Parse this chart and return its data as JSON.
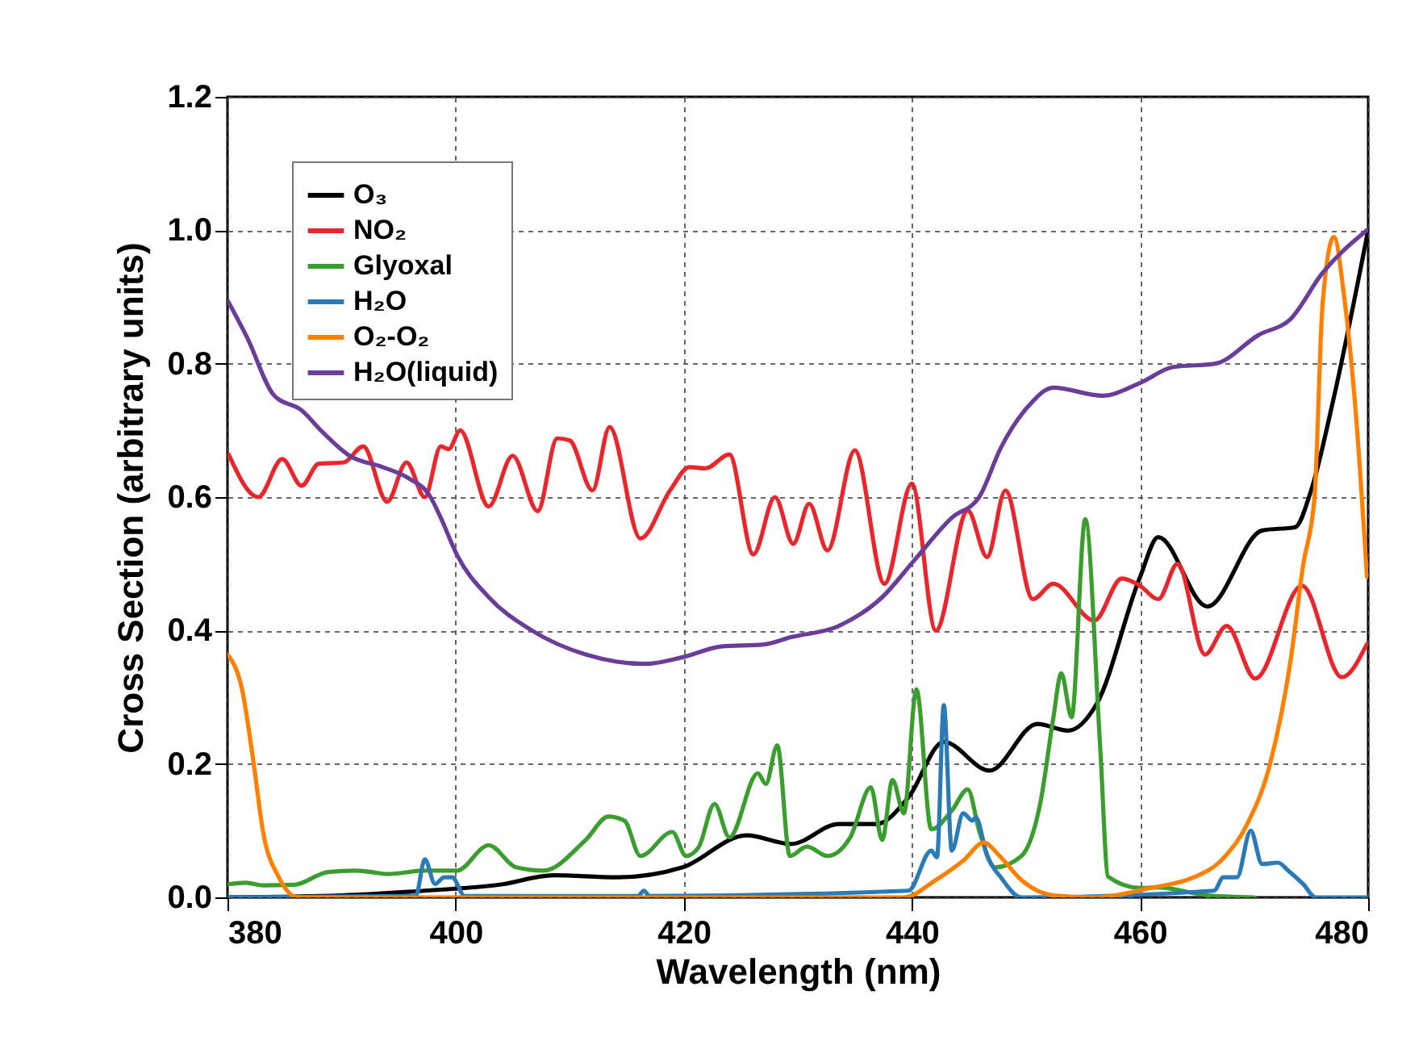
{
  "chart_data": {
    "type": "line",
    "xlabel": "Wavelength (nm)",
    "ylabel": "Cross Section (arbitrary units)",
    "xlim": [
      380,
      480
    ],
    "xticks": [
      380,
      400,
      420,
      440,
      460,
      480
    ],
    "ylim": [
      0,
      1.2
    ],
    "yticks": [
      {
        "value": 0,
        "label": "0.0"
      },
      {
        "value": 0.2,
        "label": "0.2"
      },
      {
        "value": 0.4,
        "label": "0.4"
      },
      {
        "value": 0.6,
        "label": "0.6"
      },
      {
        "value": 0.8,
        "label": "0.8"
      },
      {
        "value": 1.0,
        "label": "1.0"
      },
      {
        "value": 1.2,
        "label": "1.2"
      }
    ],
    "grid": true,
    "legend": "top left",
    "series": [
      {
        "name": "O₃",
        "color": "#000000",
        "x": [
          380,
          390,
          397.3,
          403.9,
          408.6,
          414.2,
          419.9,
          425.5,
          429.4,
          433.6,
          436.9,
          439.7,
          442.8,
          446.8,
          451,
          453.7,
          456.2,
          460,
          461.6,
          465.9,
          470.7,
          473.6,
          475,
          477,
          480
        ],
        "values": [
          0,
          0.003,
          0.01,
          0.019,
          0.033,
          0.03,
          0.045,
          0.093,
          0.08,
          0.11,
          0.11,
          0.15,
          0.233,
          0.19,
          0.26,
          0.25,
          0.29,
          0.48,
          0.54,
          0.436,
          0.55,
          0.555,
          0.61,
          0.75,
          1.0
        ]
      },
      {
        "name": "NO₂",
        "color": "#e8262b",
        "x": [
          380.1,
          382.7,
          384.8,
          386.5,
          388,
          390.2,
          391.9,
          394,
          395.7,
          397.3,
          398.7,
          399.4,
          400.4,
          402.9,
          405,
          407.2,
          408.9,
          410,
          412,
          413.5,
          416.2,
          418.8,
          420.5,
          421.9,
          424,
          426.1,
          428,
          429.6,
          431,
          432.6,
          435,
          437.6,
          440,
          442.1,
          444.9,
          446.6,
          448.2,
          450.6,
          452.4,
          456,
          458.4,
          460,
          461.6,
          463.3,
          465.7,
          467.6,
          470.1,
          474.2,
          477.7,
          479.9
        ],
        "values": [
          0.664,
          0.6,
          0.657,
          0.617,
          0.65,
          0.652,
          0.676,
          0.593,
          0.652,
          0.6,
          0.676,
          0.672,
          0.7,
          0.586,
          0.662,
          0.579,
          0.688,
          0.685,
          0.61,
          0.705,
          0.538,
          0.61,
          0.645,
          0.643,
          0.664,
          0.514,
          0.6,
          0.53,
          0.59,
          0.52,
          0.67,
          0.47,
          0.62,
          0.4,
          0.58,
          0.51,
          0.61,
          0.447,
          0.47,
          0.415,
          0.478,
          0.467,
          0.447,
          0.5,
          0.364,
          0.407,
          0.328,
          0.467,
          0.33,
          0.38
        ]
      },
      {
        "name": "Glyoxal",
        "color": "#3a9e2e",
        "x": [
          380.1,
          381.6,
          383.1,
          385.9,
          388.8,
          391.2,
          392.6,
          394,
          397.3,
          400.1,
          402.9,
          405.3,
          407.7,
          411.4,
          413.4,
          414.8,
          416.2,
          419,
          420.2,
          421.3,
          422.7,
          424,
          426.5,
          427.2,
          428.2,
          429.3,
          430.8,
          432.6,
          434.6,
          436.4,
          437.4,
          438.3,
          439.3,
          440.4,
          441.7,
          443.5,
          444.9,
          445.9,
          447.3,
          449.6,
          451.3,
          452.4,
          453.1,
          454,
          455.2,
          456.5,
          457.2,
          460,
          461.6,
          465.9,
          470
        ],
        "values": [
          0.02,
          0.022,
          0.018,
          0.019,
          0.038,
          0.04,
          0.038,
          0.035,
          0.04,
          0.04,
          0.078,
          0.045,
          0.04,
          0.086,
          0.121,
          0.115,
          0.062,
          0.098,
          0.062,
          0.075,
          0.14,
          0.09,
          0.186,
          0.17,
          0.228,
          0.062,
          0.076,
          0.062,
          0.09,
          0.165,
          0.086,
          0.176,
          0.126,
          0.312,
          0.102,
          0.13,
          0.162,
          0.1,
          0.045,
          0.062,
          0.145,
          0.269,
          0.336,
          0.27,
          0.567,
          0.228,
          0.031,
          0.014,
          0.015,
          0.003,
          0
        ]
      },
      {
        "name": "H₂O",
        "color": "#2a7ab8",
        "x": [
          380,
          396.5,
          397.3,
          398.2,
          399,
          399.7,
          400.8,
          416,
          416.5,
          417,
          439.7,
          441.7,
          442.2,
          442.8,
          443.5,
          444.5,
          445.3,
          445.6,
          446.6,
          447.8,
          449.6,
          466.5,
          467.3,
          468.5,
          469.7,
          470.7,
          472.1,
          473,
          474.3,
          475.4,
          480
        ],
        "values": [
          0,
          0.002,
          0.057,
          0.02,
          0.03,
          0.03,
          0.002,
          0.002,
          0.01,
          0.002,
          0.01,
          0.07,
          0.06,
          0.288,
          0.07,
          0.126,
          0.115,
          0.12,
          0.062,
          0.03,
          0,
          0.01,
          0.03,
          0.03,
          0.1,
          0.05,
          0.052,
          0.04,
          0.02,
          0,
          0
        ]
      },
      {
        "name": "O₂-O₂",
        "color": "#ff8000",
        "x": [
          380,
          381.3,
          382.3,
          383.1,
          384.5,
          386.2,
          439.3,
          442.1,
          444.5,
          446.3,
          447.8,
          449.6,
          452.4,
          456,
          460.9,
          464.7,
          467.1,
          469.4,
          471.4,
          473.2,
          474.3,
          475.3,
          476,
          477,
          477.9,
          478.9,
          479.9
        ],
        "values": [
          0.364,
          0.31,
          0.2,
          0.1,
          0.03,
          0,
          0,
          0.026,
          0.055,
          0.082,
          0.06,
          0.026,
          0.003,
          0,
          0.014,
          0.03,
          0.055,
          0.11,
          0.2,
          0.355,
          0.498,
          0.6,
          0.888,
          0.99,
          0.9,
          0.73,
          0.48
        ]
      },
      {
        "name": "H₂O(liquid)",
        "color": "#6a3d9a",
        "x": [
          380,
          381.7,
          384.1,
          386.5,
          388.3,
          390.7,
          393.6,
          395.8,
          397.8,
          398.7,
          400.1,
          402.9,
          406.7,
          411.4,
          416.6,
          419.9,
          423.3,
          427,
          429.4,
          433.6,
          437.4,
          440.3,
          443.5,
          445.9,
          447.8,
          450.2,
          452.4,
          456.7,
          460,
          462.9,
          466.6,
          470.4,
          473.2,
          476,
          479.9
        ],
        "values": [
          0.895,
          0.84,
          0.752,
          0.73,
          0.698,
          0.662,
          0.645,
          0.629,
          0.6,
          0.569,
          0.514,
          0.45,
          0.4,
          0.364,
          0.35,
          0.36,
          0.376,
          0.379,
          0.39,
          0.407,
          0.45,
          0.507,
          0.569,
          0.6,
          0.674,
          0.736,
          0.764,
          0.752,
          0.771,
          0.795,
          0.8,
          0.843,
          0.867,
          0.936,
          1.0
        ]
      }
    ]
  }
}
